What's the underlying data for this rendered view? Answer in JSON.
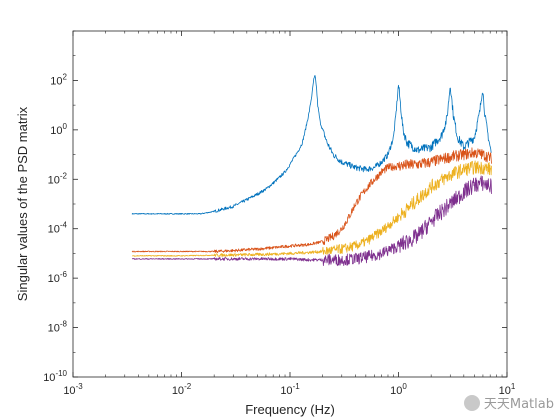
{
  "chart_data": {
    "type": "line",
    "title": "",
    "xlabel": "Frequency (Hz)",
    "ylabel": "Singular values of the PSD matrix",
    "xscale": "log",
    "yscale": "log",
    "xlim": [
      0.001,
      10
    ],
    "ylim": [
      1e-10,
      10000
    ],
    "grid": false,
    "legend": "none",
    "x_ticks": [
      {
        "value": 0.001,
        "base": "10",
        "exp": "-3"
      },
      {
        "value": 0.01,
        "base": "10",
        "exp": "-2"
      },
      {
        "value": 0.1,
        "base": "10",
        "exp": "-1"
      },
      {
        "value": 1,
        "base": "10",
        "exp": "0"
      },
      {
        "value": 10,
        "base": "10",
        "exp": "1"
      }
    ],
    "y_ticks": [
      {
        "value": 1e-10,
        "base": "10",
        "exp": "-10"
      },
      {
        "value": 1e-08,
        "base": "10",
        "exp": "-8"
      },
      {
        "value": 1e-06,
        "base": "10",
        "exp": "-6"
      },
      {
        "value": 0.0001,
        "base": "10",
        "exp": "-4"
      },
      {
        "value": 0.01,
        "base": "10",
        "exp": "-2"
      },
      {
        "value": 1,
        "base": "10",
        "exp": "0"
      },
      {
        "value": 100,
        "base": "10",
        "exp": "2"
      }
    ],
    "series": [
      {
        "color": "#0072BD",
        "x": [
          0.0035,
          0.006,
          0.01,
          0.015,
          0.02,
          0.03,
          0.04,
          0.05,
          0.06,
          0.07,
          0.08,
          0.09,
          0.1,
          0.11,
          0.12,
          0.13,
          0.14,
          0.15,
          0.16,
          0.165,
          0.17,
          0.175,
          0.18,
          0.19,
          0.2,
          0.22,
          0.25,
          0.3,
          0.4,
          0.5,
          0.6,
          0.7,
          0.8,
          0.9,
          0.95,
          1.0,
          1.05,
          1.1,
          1.2,
          1.5,
          2.0,
          2.5,
          2.8,
          3.0,
          3.2,
          3.5,
          4.0,
          5.0,
          5.6,
          5.95,
          6.3,
          6.8,
          7.2
        ],
        "y": [
          0.0004,
          0.0004,
          0.0004,
          0.0004,
          0.0005,
          0.0008,
          0.0015,
          0.0025,
          0.004,
          0.007,
          0.012,
          0.02,
          0.04,
          0.08,
          0.15,
          0.3,
          1.2,
          5,
          30,
          100,
          150,
          60,
          10,
          2,
          1,
          0.3,
          0.1,
          0.05,
          0.03,
          0.025,
          0.03,
          0.05,
          0.1,
          0.5,
          5,
          70,
          8,
          1,
          0.3,
          0.15,
          0.2,
          0.6,
          3,
          70,
          4,
          0.5,
          0.2,
          0.5,
          5,
          50,
          3,
          0.4,
          0.1
        ]
      },
      {
        "color": "#D95319",
        "x": [
          0.0035,
          0.01,
          0.02,
          0.03,
          0.05,
          0.08,
          0.1,
          0.15,
          0.2,
          0.25,
          0.3,
          0.35,
          0.4,
          0.5,
          0.6,
          0.7,
          0.8,
          1.0,
          1.5,
          2.0,
          3.0,
          4.0,
          5.0,
          6.0,
          7.2
        ],
        "y": [
          1.2e-05,
          1.2e-05,
          1.2e-05,
          1.3e-05,
          1.5e-05,
          1.8e-05,
          2e-05,
          2.3e-05,
          3e-05,
          5e-05,
          0.0001,
          0.0003,
          0.001,
          0.004,
          0.01,
          0.02,
          0.03,
          0.035,
          0.04,
          0.05,
          0.08,
          0.1,
          0.12,
          0.1,
          0.07
        ]
      },
      {
        "color": "#EDB120",
        "x": [
          0.0035,
          0.01,
          0.02,
          0.05,
          0.1,
          0.15,
          0.2,
          0.3,
          0.4,
          0.5,
          0.7,
          1.0,
          1.5,
          2.0,
          3.0,
          4.0,
          5.0,
          6.0,
          7.2
        ],
        "y": [
          8e-06,
          8e-06,
          8.5e-06,
          9e-06,
          1e-05,
          1.1e-05,
          1.2e-05,
          1.5e-05,
          2e-05,
          3e-05,
          8e-05,
          0.0003,
          0.0015,
          0.005,
          0.015,
          0.025,
          0.03,
          0.03,
          0.025
        ]
      },
      {
        "color": "#7E2F8E",
        "x": [
          0.0035,
          0.01,
          0.02,
          0.05,
          0.1,
          0.15,
          0.2,
          0.3,
          0.4,
          0.5,
          0.7,
          1.0,
          1.5,
          2.0,
          3.0,
          4.0,
          5.0,
          6.0,
          7.2
        ],
        "y": [
          6e-06,
          6e-06,
          6e-06,
          6e-06,
          6e-06,
          5.5e-06,
          5.5e-06,
          5.5e-06,
          6e-06,
          7e-06,
          1e-05,
          2e-05,
          5e-05,
          0.0002,
          0.001,
          0.003,
          0.006,
          0.007,
          0.005
        ]
      }
    ]
  },
  "watermark": {
    "text": "天天Matlab"
  }
}
